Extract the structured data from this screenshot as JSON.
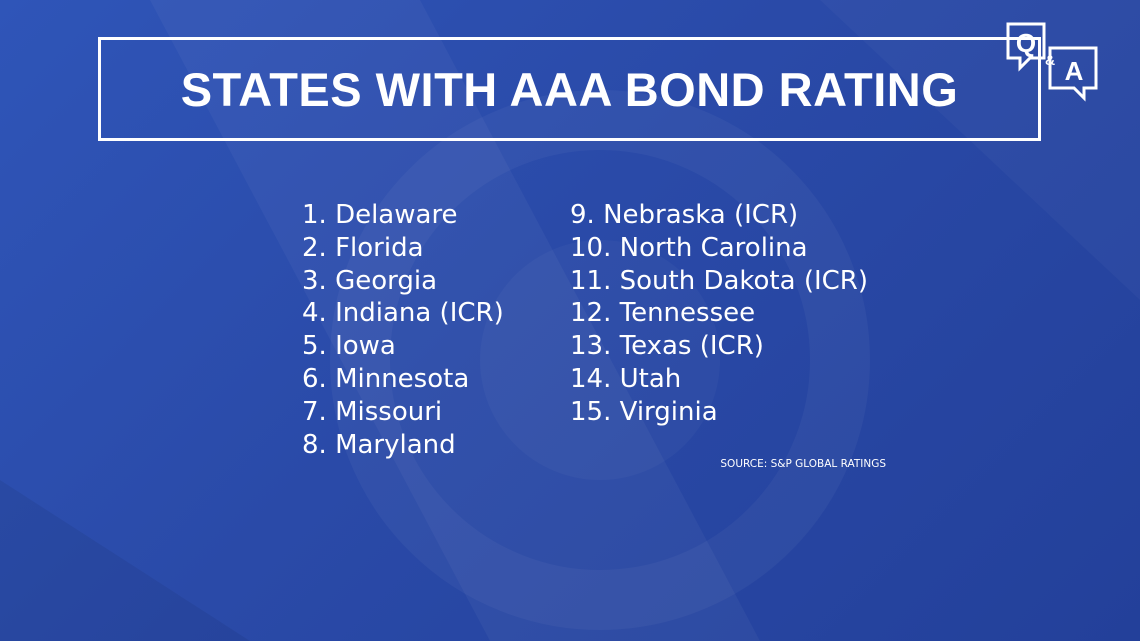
{
  "header": {
    "title": "STATES WITH AAA BOND RATING"
  },
  "logo": {
    "q": "Q",
    "amp": "&",
    "a": "A"
  },
  "list": {
    "left": [
      "1. Delaware",
      "2. Florida",
      "3. Georgia",
      "4. Indiana (ICR)",
      "5. Iowa",
      "6. Minnesota",
      "7. Missouri",
      "8. Maryland"
    ],
    "right": [
      "9. Nebraska (ICR)",
      "10. North Carolina",
      "11. South Dakota (ICR)",
      "12. Tennessee",
      "13. Texas (ICR)",
      "14. Utah",
      "15. Virginia"
    ]
  },
  "source": "SOURCE: S&P GLOBAL RATINGS"
}
